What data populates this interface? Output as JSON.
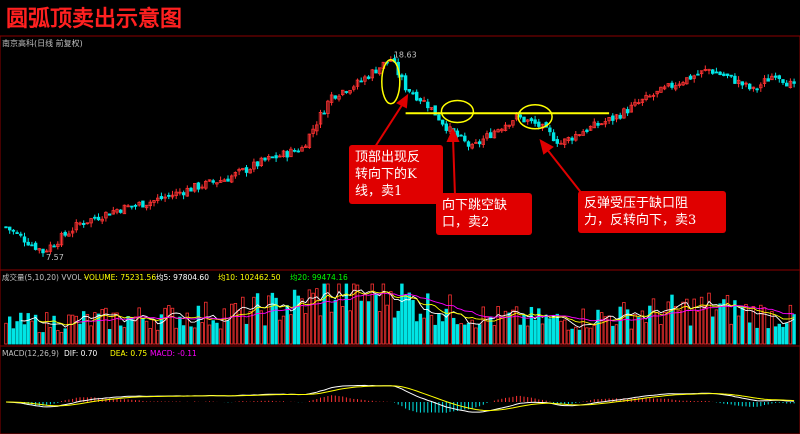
{
  "header": {
    "title": "圆弧顶卖出示意图",
    "stock_label": "南京高科(日线 前复权)",
    "high_price": "18.63",
    "low_price": "7.57"
  },
  "volume_panel": {
    "name": "成交量(5,10,20) VVOL -",
    "volume": "VOLUME: 75231.56",
    "ma5": "均5: 97804.60",
    "ma10": "均10: 102462.50",
    "ma20": "均20: 99474.16"
  },
  "macd_panel": {
    "name": "MACD(12,26,9)",
    "dif": "DIF: 0.70",
    "dea": "DEA: 0.75",
    "macd": "MACD: -0.11"
  },
  "annotations": [
    {
      "text": "顶部出现反\n转向下的K\n线，卖1"
    },
    {
      "text": "向下跳空缺\n口，卖2"
    },
    {
      "text": "反弹受压于缺口阻\n力，反转向下，卖3"
    }
  ],
  "colors": {
    "up": "#ff3232",
    "down": "#00e5e5",
    "highlight": "#ffff00",
    "ma5": "#ffffff",
    "ma10": "#ffff00",
    "ma20": "#ff00ff",
    "callout": "#e00000"
  },
  "chart_data": {
    "type": "candlestick",
    "price_anchors": [
      {
        "bar": 10,
        "price": 7.57
      },
      {
        "bar": 104,
        "price": 18.63
      }
    ],
    "price_path_points": [
      [
        0,
        9.0
      ],
      [
        10,
        7.6
      ],
      [
        20,
        9.2
      ],
      [
        30,
        10.0
      ],
      [
        40,
        10.5
      ],
      [
        50,
        11.2
      ],
      [
        60,
        11.8
      ],
      [
        70,
        12.8
      ],
      [
        80,
        13.5
      ],
      [
        88,
        16.5
      ],
      [
        95,
        17.2
      ],
      [
        100,
        18.0
      ],
      [
        104,
        18.6
      ],
      [
        108,
        17.0
      ],
      [
        114,
        16.0
      ],
      [
        120,
        14.5
      ],
      [
        126,
        13.5
      ],
      [
        132,
        14.5
      ],
      [
        138,
        15.3
      ],
      [
        144,
        14.8
      ],
      [
        150,
        13.8
      ],
      [
        156,
        14.5
      ],
      [
        164,
        15.2
      ],
      [
        172,
        16.2
      ],
      [
        182,
        17.3
      ],
      [
        190,
        18.0
      ],
      [
        196,
        17.5
      ],
      [
        202,
        16.8
      ],
      [
        208,
        17.8
      ],
      [
        214,
        16.8
      ]
    ],
    "bars_count": 214,
    "resistance_line_price": 15.5,
    "resistance_line_bars": [
      108,
      163
    ],
    "volume_path_points": [
      [
        0,
        60000
      ],
      [
        20,
        70000
      ],
      [
        40,
        80000
      ],
      [
        60,
        90000
      ],
      [
        80,
        120000
      ],
      [
        88,
        150000
      ],
      [
        95,
        140000
      ],
      [
        104,
        160000
      ],
      [
        110,
        120000
      ],
      [
        130,
        80000
      ],
      [
        150,
        70000
      ],
      [
        170,
        90000
      ],
      [
        190,
        110000
      ],
      [
        214,
        75231.56
      ]
    ]
  }
}
